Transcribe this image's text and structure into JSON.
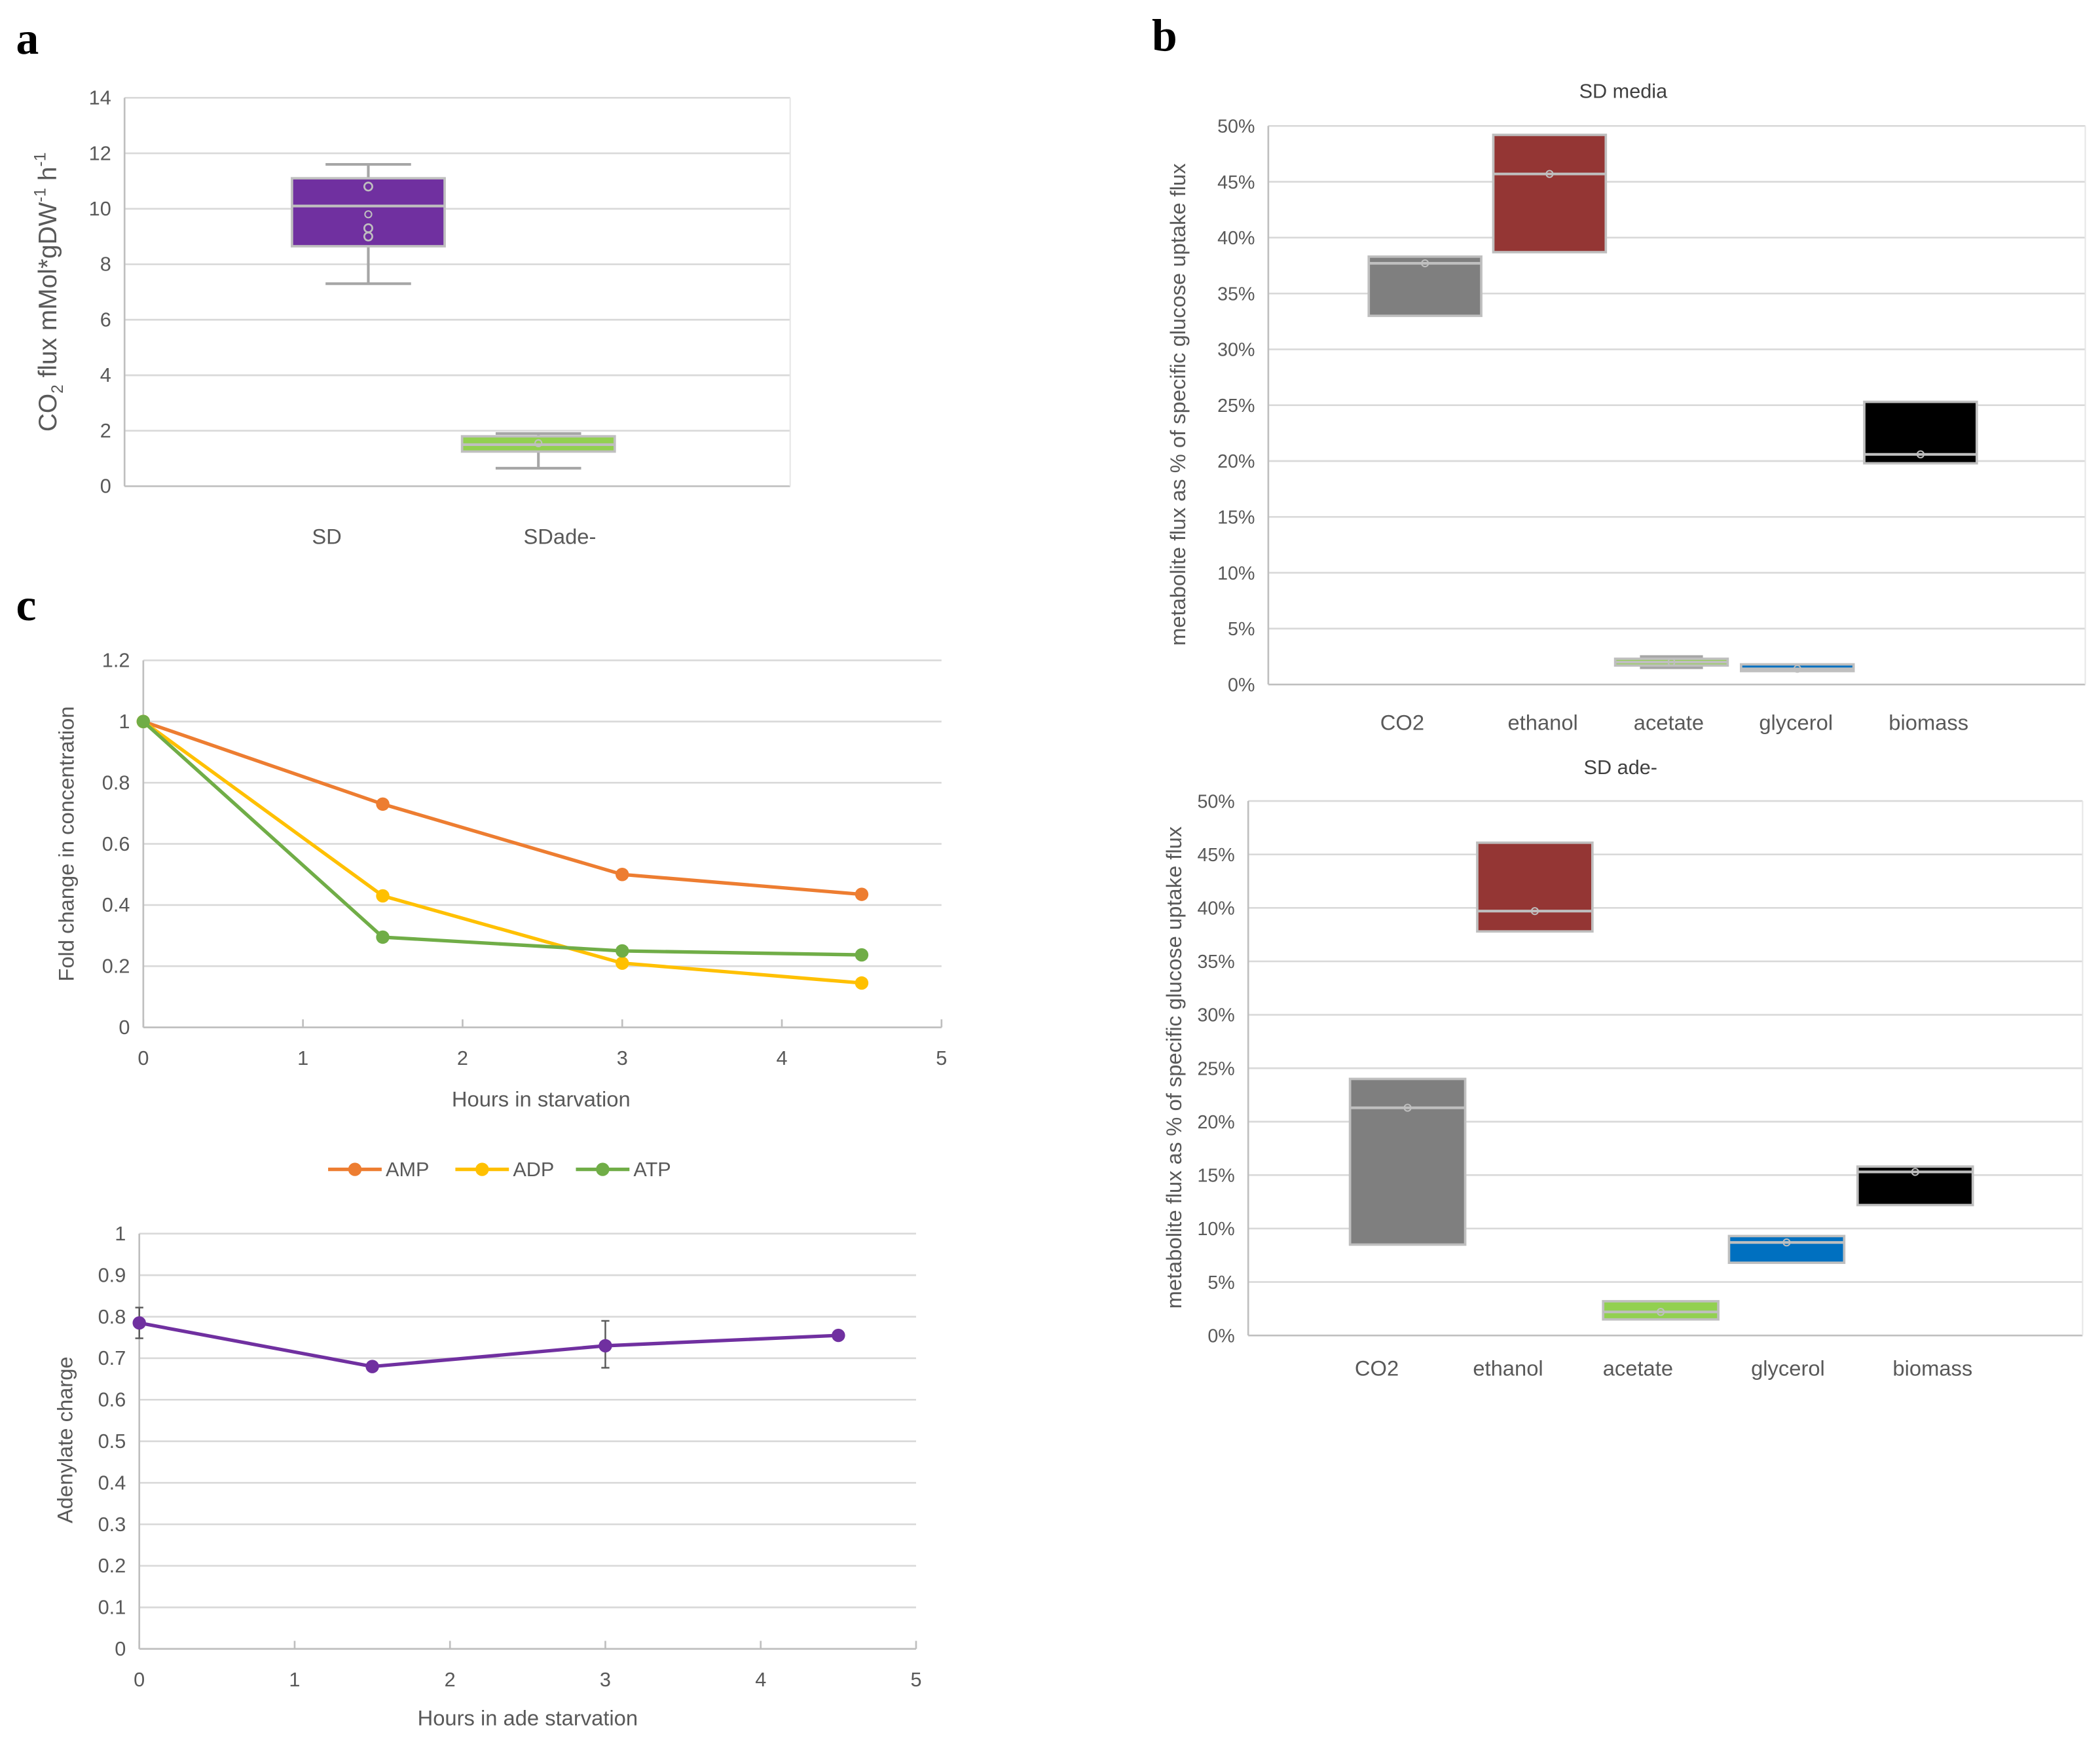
{
  "panel_labels": {
    "a": "a",
    "b": "b",
    "c": "c"
  },
  "chart_data": [
    {
      "id": "a",
      "type": "box",
      "title": "",
      "ylabel": "CO2 flux mMol*gDW-1 h-1",
      "ylabel_parts": {
        "main": "CO",
        "sub": "2",
        "rest": " flux mMol*gDW",
        "sup1": "-1",
        "h": " h",
        "sup2": "-1"
      },
      "ylim": [
        0,
        14
      ],
      "yticks": [
        "0",
        "2",
        "4",
        "6",
        "8",
        "10",
        "12",
        "14"
      ],
      "categories": [
        "SD",
        "SDade-"
      ],
      "boxes": [
        {
          "min": 7.3,
          "q1": 8.65,
          "median": 10.1,
          "q3": 11.1,
          "max": 11.6,
          "mean": 9.8,
          "points": [
            10.8,
            9.3,
            9.0
          ],
          "color": "#7030a0"
        },
        {
          "min": 0.65,
          "q1": 1.25,
          "median": 1.5,
          "q3": 1.8,
          "max": 1.9,
          "mean": 1.55,
          "points": [],
          "color": "#92d050"
        }
      ],
      "grid": true
    },
    {
      "id": "b-top",
      "type": "box",
      "title": "SD media",
      "ylabel": "metabolite flux as % of specific glucose  uptake  flux",
      "ylim": [
        0,
        50
      ],
      "yticks": [
        "0%",
        "5%",
        "10%",
        "15%",
        "20%",
        "25%",
        "30%",
        "35%",
        "40%",
        "45%",
        "50%"
      ],
      "categories": [
        "CO2",
        "ethanol",
        "acetate",
        "glycerol",
        "biomass"
      ],
      "boxes": [
        {
          "min": 33,
          "q1": 33,
          "median": 37.7,
          "q3": 38.3,
          "max": 38.3,
          "mean": 37.7,
          "color": "#7f7f7f"
        },
        {
          "min": 38.7,
          "q1": 38.7,
          "median": 45.7,
          "q3": 49.2,
          "max": 49.2,
          "mean": 45.7,
          "color": "#943634"
        },
        {
          "min": 1.5,
          "q1": 1.7,
          "median": 2.0,
          "q3": 2.3,
          "max": 2.5,
          "mean": 2.0,
          "color": "#92d050"
        },
        {
          "min": 1.2,
          "q1": 1.2,
          "median": 1.4,
          "q3": 1.8,
          "max": 1.8,
          "mean": 1.4,
          "color": "#0070c0"
        },
        {
          "min": 19.8,
          "q1": 19.8,
          "median": 20.6,
          "q3": 25.3,
          "max": 25.3,
          "mean": 20.6,
          "color": "#000000"
        }
      ],
      "grid": true
    },
    {
      "id": "b-bottom",
      "type": "box",
      "title": "SD ade-",
      "ylabel": "metabolite flux as % of specific glucose  uptake  flux",
      "ylim": [
        0,
        50
      ],
      "yticks": [
        "0%",
        "5%",
        "10%",
        "15%",
        "20%",
        "25%",
        "30%",
        "35%",
        "40%",
        "45%",
        "50%"
      ],
      "categories": [
        "CO2",
        "ethanol",
        "acetate",
        "glycerol",
        "biomass"
      ],
      "boxes": [
        {
          "min": 8.5,
          "q1": 8.5,
          "median": 21.3,
          "q3": 24.0,
          "max": 24.0,
          "mean": 21.3,
          "color": "#7f7f7f"
        },
        {
          "min": 37.8,
          "q1": 37.8,
          "median": 39.7,
          "q3": 46.1,
          "max": 46.1,
          "mean": 39.7,
          "color": "#943634"
        },
        {
          "min": 1.5,
          "q1": 1.5,
          "median": 2.2,
          "q3": 3.2,
          "max": 3.2,
          "mean": 2.2,
          "color": "#92d050"
        },
        {
          "min": 6.8,
          "q1": 6.8,
          "median": 8.7,
          "q3": 9.3,
          "max": 9.3,
          "mean": 8.7,
          "color": "#0070c0"
        },
        {
          "min": 12.2,
          "q1": 12.2,
          "median": 15.3,
          "q3": 15.8,
          "max": 15.8,
          "mean": 15.3,
          "color": "#000000"
        }
      ],
      "grid": true
    },
    {
      "id": "c-top",
      "type": "line",
      "xlabel": "Hours in starvation",
      "ylabel": "Fold change in concentration",
      "xlim": [
        0,
        5
      ],
      "ylim": [
        0,
        1.2
      ],
      "xticks": [
        "0",
        "1",
        "2",
        "3",
        "4",
        "5"
      ],
      "yticks": [
        "0",
        "0.2",
        "0.4",
        "0.6",
        "0.8",
        "1",
        "1.2"
      ],
      "x": [
        0,
        1.5,
        3,
        4.5
      ],
      "series": [
        {
          "name": "AMP",
          "values": [
            1.0,
            0.73,
            0.5,
            0.435
          ],
          "color": "#ed7d31"
        },
        {
          "name": "ADP",
          "values": [
            1.0,
            0.43,
            0.21,
            0.145
          ],
          "color": "#ffc000"
        },
        {
          "name": "ATP",
          "values": [
            1.0,
            0.295,
            0.25,
            0.237
          ],
          "color": "#70ad47"
        }
      ],
      "legend": "bottom",
      "grid": true
    },
    {
      "id": "c-bottom",
      "type": "line",
      "xlabel": "Hours in ade starvation",
      "ylabel": "Adenylate charge",
      "xlim": [
        0,
        5
      ],
      "ylim": [
        0,
        1
      ],
      "xticks": [
        "0",
        "1",
        "2",
        "3",
        "4",
        "5"
      ],
      "yticks": [
        "0",
        "0.1",
        "0.2",
        "0.3",
        "0.4",
        "0.5",
        "0.6",
        "0.7",
        "0.8",
        "0.9",
        "1"
      ],
      "x": [
        0,
        1.5,
        3,
        4.5
      ],
      "series": [
        {
          "name": "Adenylate charge",
          "values": [
            0.785,
            0.68,
            0.73,
            0.755
          ],
          "errors_low": [
            0.748,
            null,
            0.677,
            null
          ],
          "errors_high": [
            0.822,
            null,
            0.79,
            null
          ],
          "color": "#7030a0"
        }
      ],
      "grid": true
    }
  ]
}
